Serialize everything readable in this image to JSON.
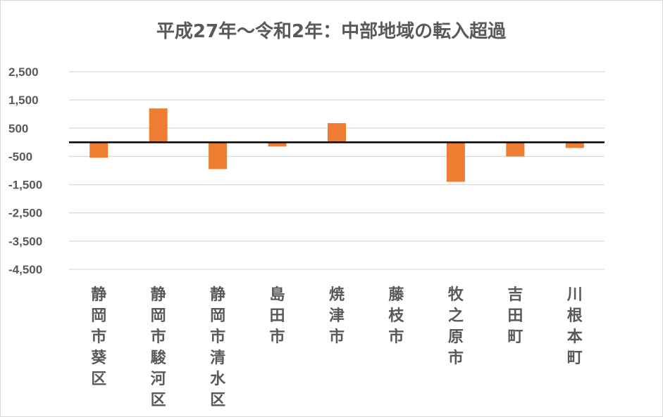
{
  "chart_data": {
    "type": "bar",
    "title": "平成27年～令和2年：中部地域の転入超過",
    "xlabel": "",
    "ylabel": "",
    "categories": [
      "静岡市葵区",
      "静岡市駿河区",
      "静岡市清水区",
      "島田市",
      "焼津市",
      "藤枝市",
      "牧之原市",
      "吉田町",
      "川根本町"
    ],
    "series": [
      {
        "values": [
          -550,
          1200,
          -950,
          -150,
          680,
          0,
          -1400,
          -500,
          -200
        ]
      }
    ],
    "yticks": [
      "2,500",
      "1,500",
      "500",
      "-500",
      "-1,500",
      "-2,500",
      "-3,500",
      "-4,500"
    ],
    "ylim": [
      -4500,
      2500
    ],
    "gridlines": true,
    "bar_color": "#ED7D31",
    "grid_color": "#D9D9D9",
    "zero_line_color": "#000000"
  }
}
